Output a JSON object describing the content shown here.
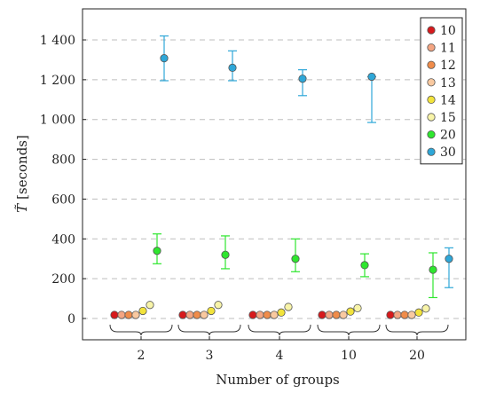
{
  "chart_data": {
    "type": "scatter",
    "xlabel": "Number of groups",
    "ylabel_symbol": "T̃",
    "ylabel_unit": "[seconds]",
    "categories": [
      "2",
      "3",
      "4",
      "10",
      "20"
    ],
    "ylim": [
      -100,
      1550
    ],
    "yticks": [
      0,
      200,
      400,
      600,
      800,
      1000,
      1200,
      1400
    ],
    "ytick_labels": [
      "0",
      "200",
      "400",
      "600",
      "800",
      "1 000",
      "1 200",
      "1 400"
    ],
    "grid": "horizontal dashed",
    "legend_position": "top-right",
    "series": [
      {
        "name": "10",
        "color": "#d7191c",
        "values": [
          18,
          18,
          18,
          18,
          18
        ],
        "low": null,
        "high": null
      },
      {
        "name": "11",
        "color": "#f4a582",
        "values": [
          18,
          18,
          18,
          18,
          18
        ],
        "low": null,
        "high": null
      },
      {
        "name": "12",
        "color": "#f08c4a",
        "values": [
          18,
          18,
          18,
          18,
          18
        ],
        "low": null,
        "high": null
      },
      {
        "name": "13",
        "color": "#f9c9a0",
        "values": [
          18,
          18,
          18,
          18,
          18
        ],
        "low": null,
        "high": null
      },
      {
        "name": "14",
        "color": "#f2e33b",
        "values": [
          38,
          38,
          30,
          35,
          30
        ],
        "low": null,
        "high": null
      },
      {
        "name": "15",
        "color": "#f8f4a8",
        "values": [
          68,
          68,
          58,
          52,
          50
        ],
        "low": null,
        "high": null
      },
      {
        "name": "20",
        "color": "#2ee62e",
        "values": [
          340,
          320,
          300,
          268,
          245
        ],
        "low": [
          275,
          250,
          235,
          210,
          105
        ],
        "high": [
          425,
          415,
          400,
          325,
          330
        ]
      },
      {
        "name": "30",
        "color": "#2ea7d8",
        "values": [
          1308,
          1260,
          1205,
          1215,
          300
        ],
        "low": [
          1195,
          1195,
          1120,
          985,
          155
        ],
        "high": [
          1420,
          1345,
          1250,
          1215,
          355
        ]
      }
    ]
  }
}
